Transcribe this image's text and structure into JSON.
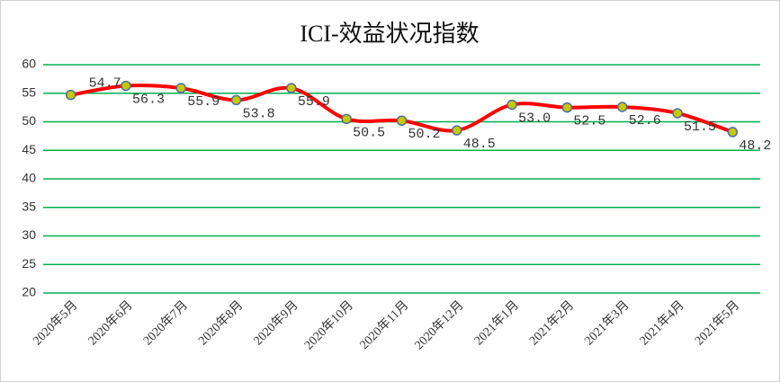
{
  "chart_data": {
    "type": "line",
    "title": "ICI-效益状况指数",
    "categories": [
      "2020年5月",
      "2020年6月",
      "2020年7月",
      "2020年8月",
      "2020年9月",
      "2020年10月",
      "2020年11月",
      "2020年12月",
      "2021年1月",
      "2021年2月",
      "2021年3月",
      "2021年4月",
      "2021年5月"
    ],
    "series": [
      {
        "name": "ICI-效益状况指数",
        "color": "#ff0000",
        "values": [
          54.7,
          56.3,
          55.9,
          53.8,
          55.9,
          50.5,
          50.2,
          48.5,
          53.0,
          52.5,
          52.6,
          51.5,
          48.2
        ],
        "value_labels": [
          "54.7",
          "56.3",
          "55.9",
          "53.8",
          "55.9",
          "50.5",
          "50.2",
          "48.5",
          "53.0",
          "52.5",
          "52.6",
          "51.5",
          "48.2"
        ]
      }
    ],
    "ylim": [
      20,
      60
    ],
    "yticks": [
      20,
      25,
      30,
      35,
      40,
      45,
      50,
      55,
      60
    ],
    "grid": true,
    "grid_color": "#00b050",
    "marker_color": "#c8c800"
  }
}
